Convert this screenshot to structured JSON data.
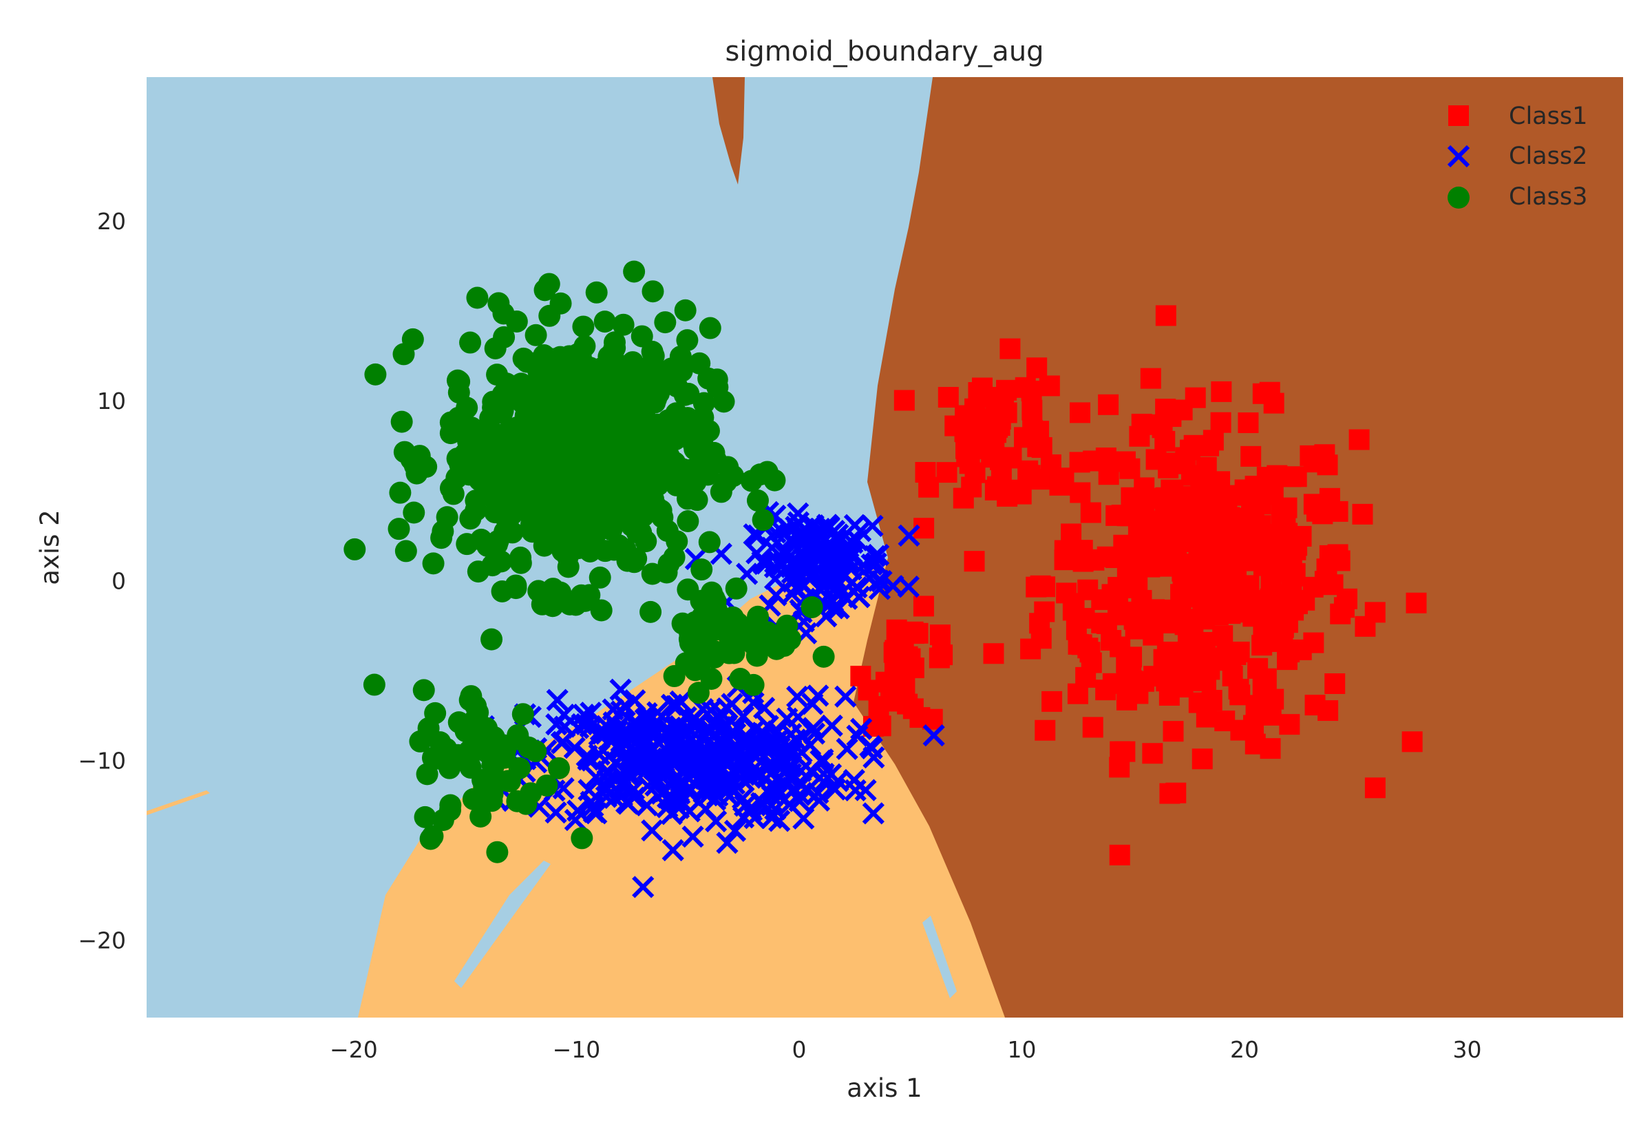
{
  "chart_data": {
    "type": "scatter",
    "title": "sigmoid_boundary_aug",
    "xlabel": "axis 1",
    "ylabel": "axis 2",
    "xlim": [
      -29.3,
      37.0
    ],
    "ylim": [
      -24.3,
      28.0
    ],
    "xticks": [
      -20,
      -10,
      0,
      10,
      20,
      30
    ],
    "yticks": [
      -20,
      -10,
      0,
      10,
      20
    ],
    "xtick_labels": [
      "−20",
      "−10",
      "0",
      "10",
      "20",
      "30"
    ],
    "ytick_labels": [
      "−20",
      "−10",
      "0",
      "10",
      "20"
    ],
    "grid": false,
    "legend_position": "top-right",
    "background_regions": {
      "light-blue": "#a6cee3",
      "light-orange": "#fdbf6f",
      "brown": "#b15928"
    },
    "series": [
      {
        "name": "Class1",
        "marker": "square",
        "color": "#ff0000",
        "clusters": [
          {
            "center": [
              18,
              0
            ],
            "spread": [
              7,
              9
            ],
            "count": 420
          },
          {
            "center": [
              9,
              8
            ],
            "spread": [
              3,
              4
            ],
            "count": 60
          },
          {
            "center": [
              5,
              -5
            ],
            "spread": [
              2,
              3
            ],
            "count": 30
          }
        ]
      },
      {
        "name": "Class2",
        "marker": "x",
        "color": "#0000ff",
        "clusters": [
          {
            "center": [
              -5,
              -10
            ],
            "spread": [
              7,
              3.5
            ],
            "count": 420
          },
          {
            "center": [
              1,
              1
            ],
            "spread": [
              3,
              2.5
            ],
            "count": 160
          }
        ]
      },
      {
        "name": "Class3",
        "marker": "circle",
        "color": "#008000",
        "clusters": [
          {
            "center": [
              -10,
              7
            ],
            "spread": [
              6,
              7
            ],
            "count": 650
          },
          {
            "center": [
              -14,
              -10
            ],
            "spread": [
              3,
              4
            ],
            "count": 70
          },
          {
            "center": [
              -3,
              -3
            ],
            "spread": [
              3,
              3
            ],
            "count": 60
          }
        ]
      }
    ]
  }
}
